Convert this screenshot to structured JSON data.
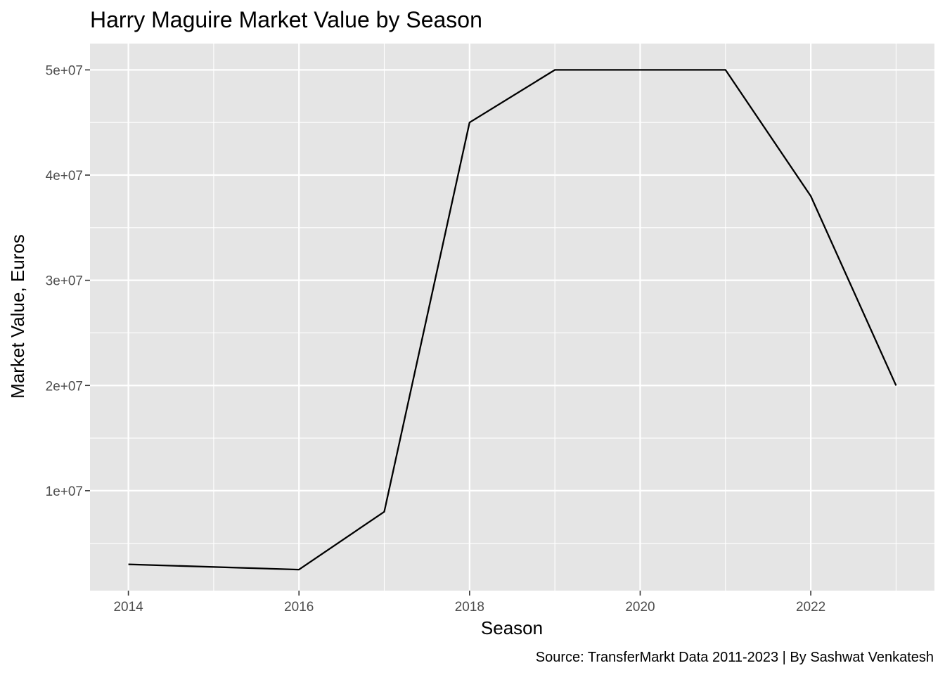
{
  "chart_data": {
    "type": "line",
    "title": "Harry Maguire Market Value by Season",
    "xlabel": "Season",
    "ylabel": "Market Value, Euros",
    "caption": "Source: TransferMarkt Data 2011-2023 | By Sashwat Venkatesh",
    "xlim": [
      2013.55,
      2023.45
    ],
    "ylim": [
      500000,
      52500000
    ],
    "x_ticks": [
      2014,
      2016,
      2018,
      2020,
      2022
    ],
    "x_tick_labels": [
      "2014",
      "2016",
      "2018",
      "2020",
      "2022"
    ],
    "x_minor": [
      2015,
      2017,
      2019,
      2021,
      2023
    ],
    "y_ticks": [
      10000000,
      20000000,
      30000000,
      40000000,
      50000000
    ],
    "y_tick_labels": [
      "1e+07",
      "2e+07",
      "3e+07",
      "4e+07",
      "5e+07"
    ],
    "y_minor": [
      5000000,
      15000000,
      25000000,
      35000000,
      45000000
    ],
    "grid": true,
    "panel_color": "#e5e5e5",
    "grid_color": "#ffffff",
    "line_color": "#000000",
    "series": [
      {
        "x": [
          2014,
          2016,
          2017,
          2018,
          2019,
          2020,
          2021,
          2022,
          2023
        ],
        "values": [
          3000000,
          2500000,
          8000000,
          45000000,
          50000000,
          50000000,
          50000000,
          38000000,
          20000000
        ]
      }
    ]
  }
}
